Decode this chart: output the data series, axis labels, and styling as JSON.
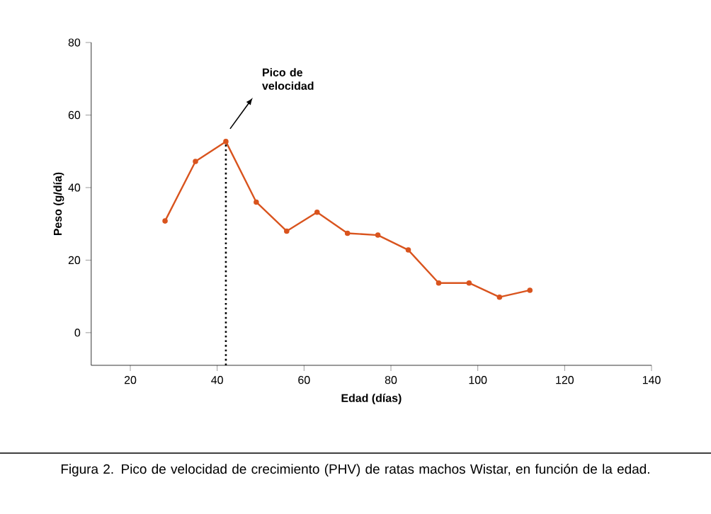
{
  "chart_data": {
    "type": "line",
    "xlabel": "Edad (días)",
    "ylabel": "Peso (g/día)",
    "x": [
      28,
      35,
      42,
      49,
      56,
      63,
      70,
      77,
      84,
      91,
      98,
      105,
      112
    ],
    "values": [
      30.8,
      47.2,
      52.7,
      36.0,
      28.0,
      33.2,
      27.4,
      26.9,
      22.8,
      13.7,
      13.7,
      9.8,
      11.7
    ],
    "color": "#d9541e",
    "marker": "circle",
    "line_style": "solid",
    "xlim": [
      11,
      140
    ],
    "ylim": [
      -9,
      80
    ],
    "xticks": [
      20,
      40,
      60,
      80,
      100,
      120,
      140
    ],
    "yticks": [
      0,
      20,
      40,
      60,
      80
    ],
    "ref_lines": [
      {
        "axis": "x",
        "value": 42,
        "label": "Pico de velocidad",
        "line_style": "dotted",
        "color": "#000000"
      }
    ],
    "annotations": [
      "Figura 2. Pico de velocidad de crecimiento (PHV) de ratas machos Wistar, en función de la edad."
    ]
  }
}
